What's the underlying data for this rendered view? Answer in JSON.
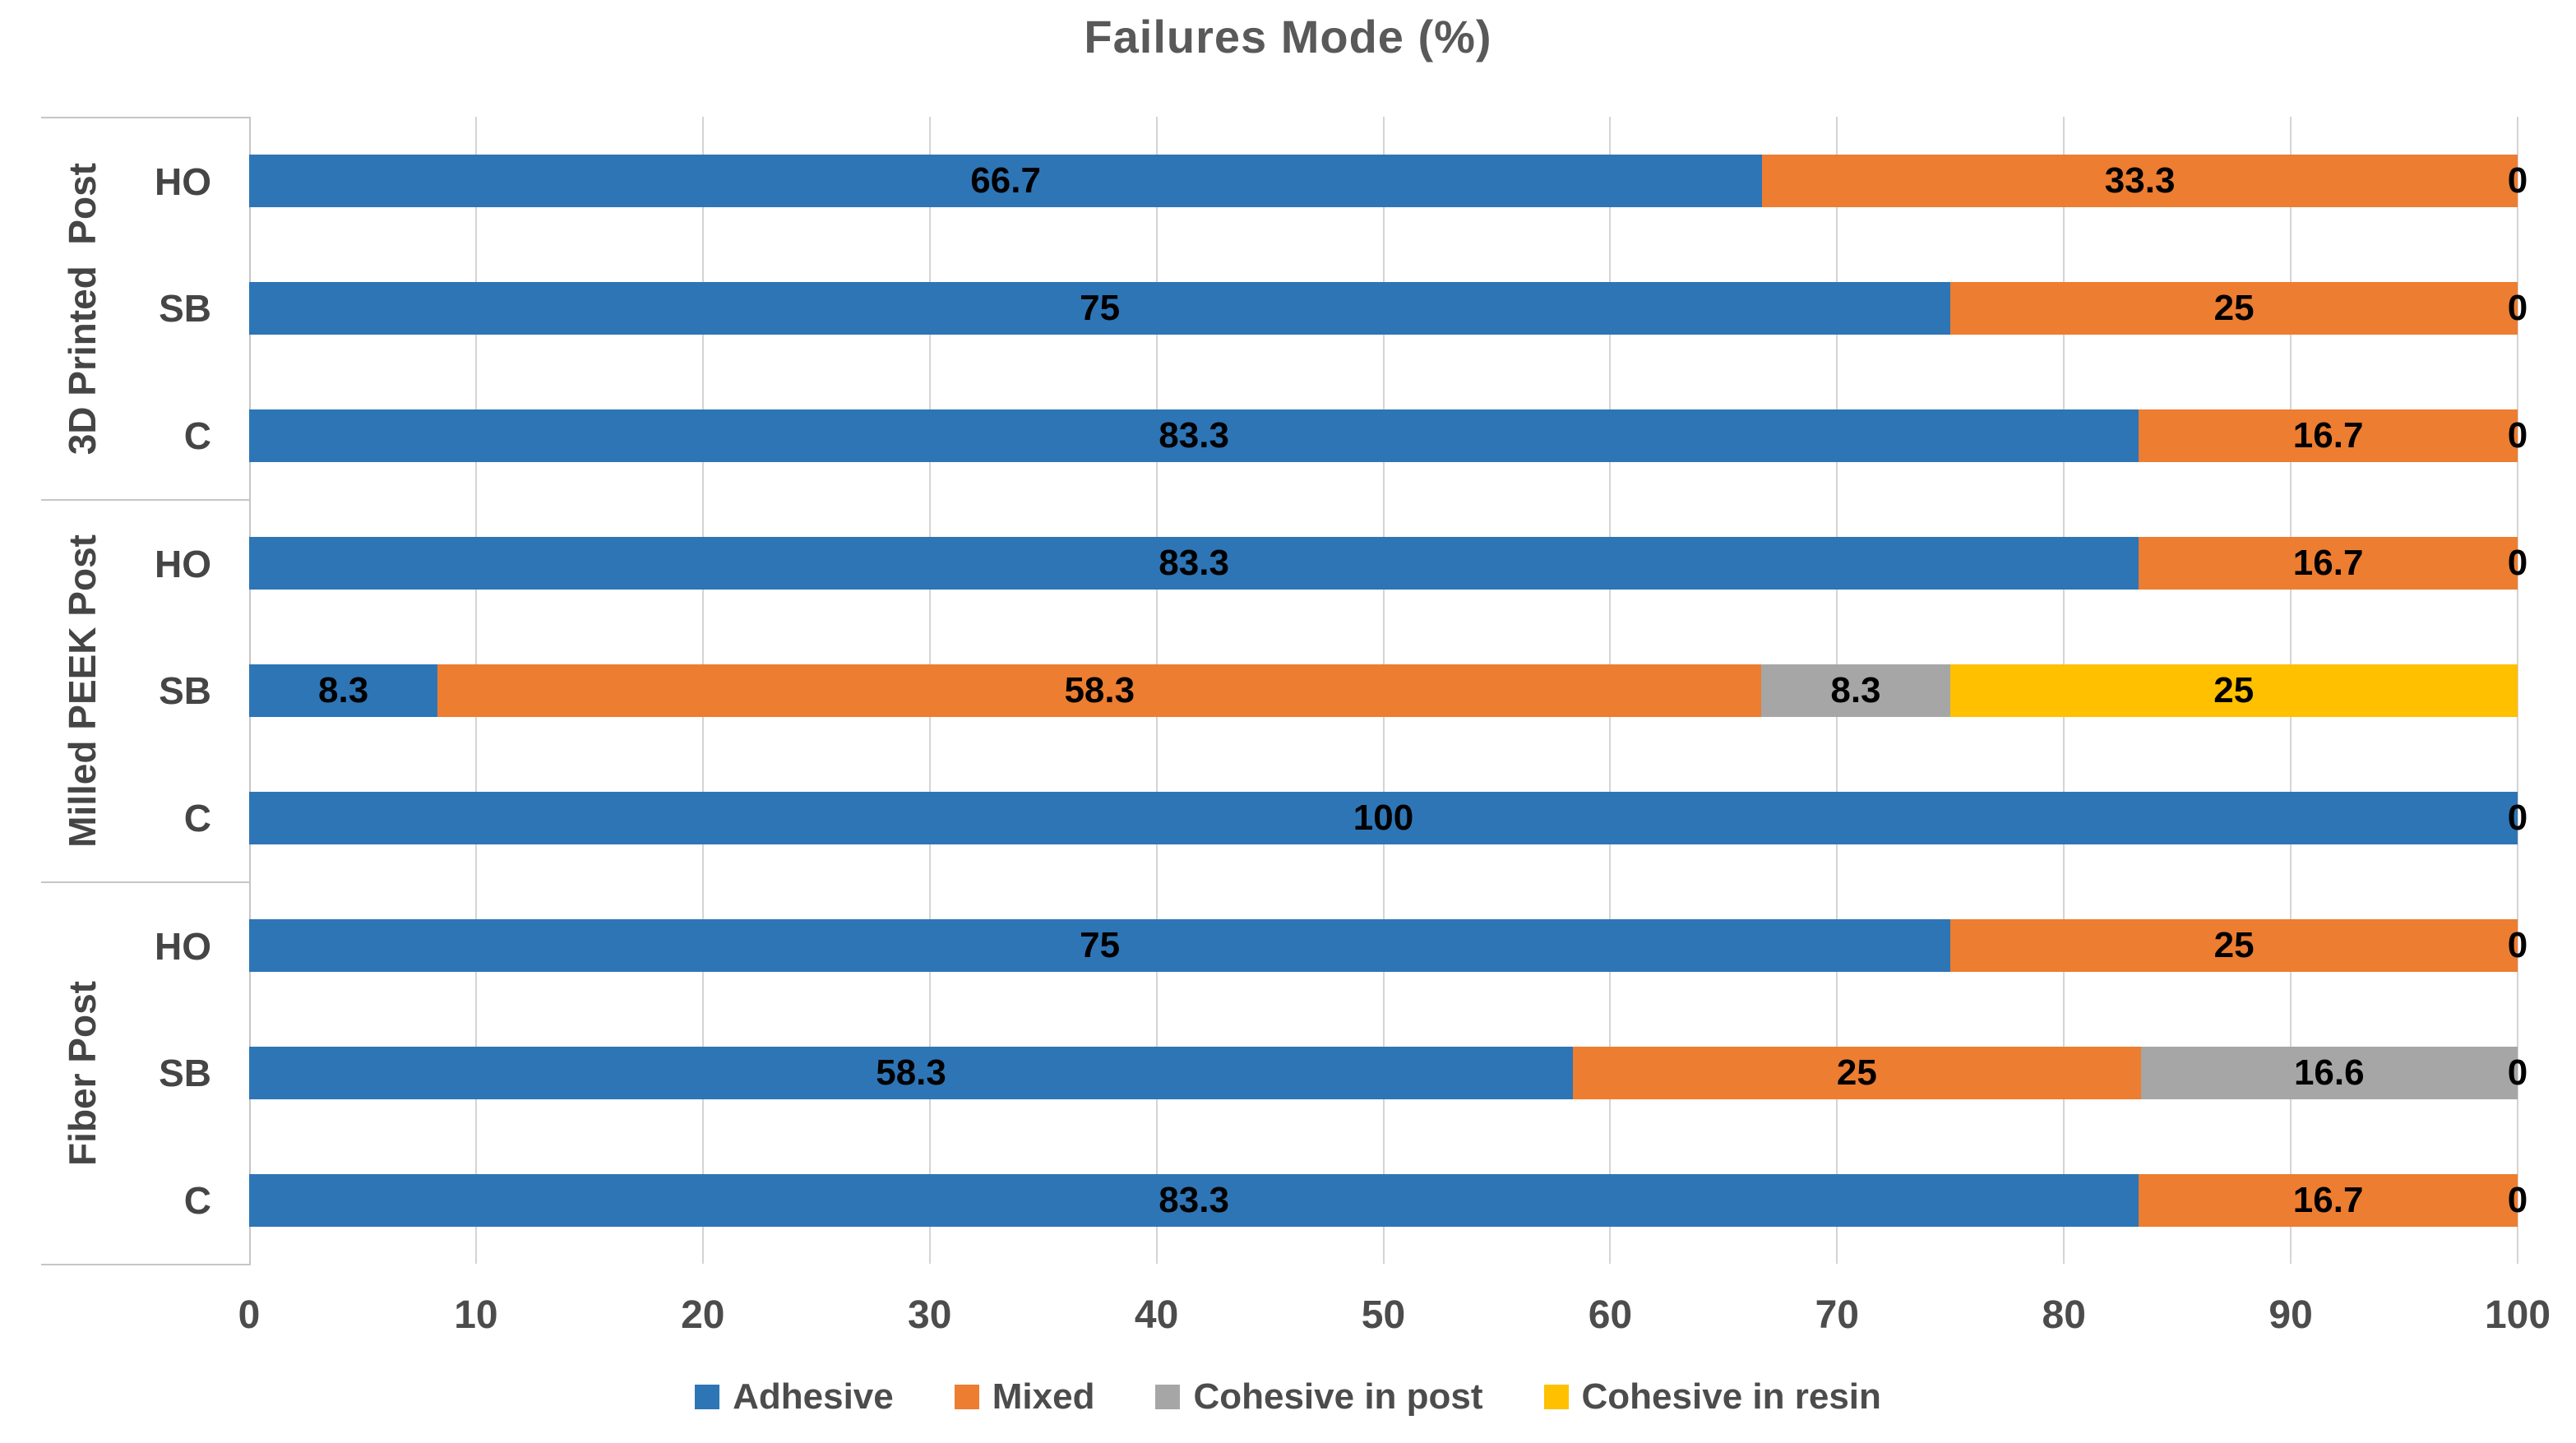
{
  "chart_data": {
    "type": "bar",
    "variant": "horizontal-stacked",
    "title": "Failures Mode (%)",
    "xlim": [
      0,
      100
    ],
    "x_ticks": [
      "0",
      "10",
      "20",
      "30",
      "40",
      "50",
      "60",
      "70",
      "80",
      "90",
      "100"
    ],
    "grid": true,
    "legend_position": "bottom",
    "series": [
      "Adhesive",
      "Mixed",
      "Cohesive in post",
      "Cohesive in resin"
    ],
    "series_colors": [
      "#2E75B6",
      "#ED7D31",
      "#A6A6A6",
      "#FFC000"
    ],
    "groups": [
      {
        "label": "3D Printed  Post",
        "bars": [
          {
            "label": "HO",
            "values": [
              66.7,
              33.3,
              0,
              0
            ],
            "data_labels": [
              "66.7",
              "33.3"
            ],
            "end_label": "0"
          },
          {
            "label": "SB",
            "values": [
              75,
              25,
              0,
              0
            ],
            "data_labels": [
              "75",
              "25"
            ],
            "end_label": "0"
          },
          {
            "label": "C",
            "values": [
              83.3,
              16.7,
              0,
              0
            ],
            "data_labels": [
              "83.3",
              "16.7"
            ],
            "end_label": "0"
          }
        ]
      },
      {
        "label": "Milled PEEK Post",
        "bars": [
          {
            "label": "HO",
            "values": [
              83.3,
              16.7,
              0,
              0
            ],
            "data_labels": [
              "83.3",
              "16.7"
            ],
            "end_label": "0"
          },
          {
            "label": "SB",
            "values": [
              8.3,
              58.3,
              8.3,
              25
            ],
            "data_labels": [
              "8.3",
              "58.3",
              "8.3",
              "25"
            ],
            "end_label": null
          },
          {
            "label": "C",
            "values": [
              100,
              0,
              0,
              0
            ],
            "data_labels": [
              "100"
            ],
            "end_label": "0"
          }
        ]
      },
      {
        "label": "Fiber Post",
        "bars": [
          {
            "label": "HO",
            "values": [
              75,
              25,
              0,
              0
            ],
            "data_labels": [
              "75",
              "25"
            ],
            "end_label": "0"
          },
          {
            "label": "SB",
            "values": [
              58.3,
              25,
              16.6,
              0
            ],
            "data_labels": [
              "58.3",
              "25",
              "16.6"
            ],
            "end_label": "0"
          },
          {
            "label": "C",
            "values": [
              83.3,
              16.7,
              0,
              0
            ],
            "data_labels": [
              "83.3",
              "16.7"
            ],
            "end_label": "0"
          }
        ]
      }
    ]
  }
}
